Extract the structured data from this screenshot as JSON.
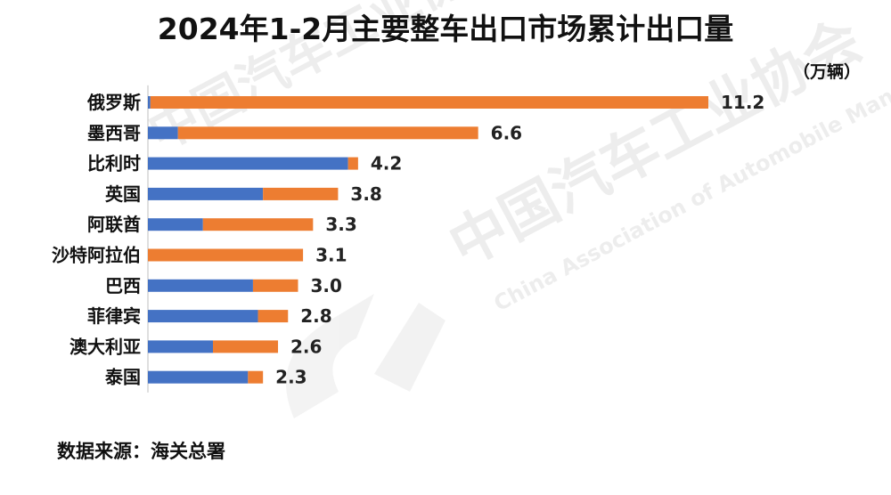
{
  "title": "2024年1-2月主要整车出口市场累计出口量",
  "unit_label": "（万辆）",
  "source_label": "数据来源：海关总署",
  "watermark": {
    "text_cn": "中国汽车工业协会",
    "text_en": "China Association of Automobile Manufacturers"
  },
  "colors": {
    "series_blue": "#4472C4",
    "series_orange": "#ED7D31",
    "axis": "#BFBFBF"
  },
  "chart_data": {
    "type": "bar",
    "orientation": "horizontal",
    "stacked": true,
    "title": "2024年1-2月主要整车出口市场累计出口量",
    "ylabel": "",
    "xlabel": "",
    "unit": "（万辆）",
    "categories": [
      "俄罗斯",
      "墨西哥",
      "比利时",
      "英国",
      "阿联酋",
      "沙特阿拉伯",
      "巴西",
      "菲律宾",
      "澳大利亚",
      "泰国"
    ],
    "totals": [
      11.2,
      6.6,
      4.2,
      3.8,
      3.3,
      3.1,
      3.0,
      2.8,
      2.6,
      2.3
    ],
    "total_labels": [
      "11.2",
      "6.6",
      "4.2",
      "3.8",
      "3.3",
      "3.1",
      "3.0",
      "2.8",
      "2.6",
      "2.3"
    ],
    "series": [
      {
        "color": "#4472C4",
        "values": [
          0.05,
          0.6,
          4.0,
          2.3,
          1.1,
          0.0,
          2.1,
          2.2,
          1.3,
          2.0
        ]
      },
      {
        "color": "#ED7D31",
        "values": [
          11.15,
          6.0,
          0.2,
          1.5,
          2.2,
          3.1,
          0.9,
          0.6,
          1.3,
          0.3
        ]
      }
    ],
    "xlim": [
      0,
      11.2
    ],
    "grid": false,
    "legend": "none"
  }
}
